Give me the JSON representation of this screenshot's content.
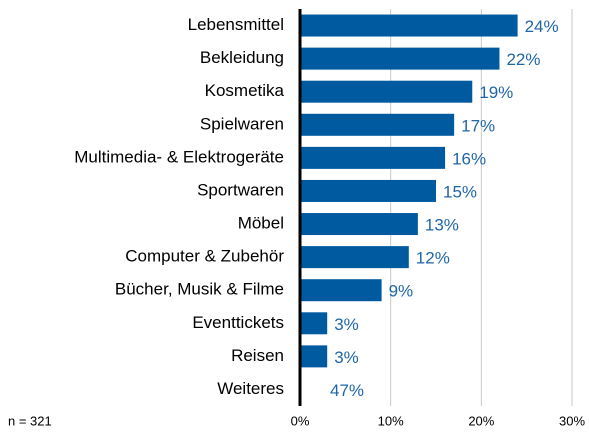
{
  "chart_data": {
    "type": "barh",
    "categories": [
      "Lebensmittel",
      "Bekleidung",
      "Kosmetika",
      "Spielwaren",
      "Multimedia- & Elektrogeräte",
      "Sportwaren",
      "Möbel",
      "Computer & Zubehör",
      "Bücher, Musik & Filme",
      "Eventtickets",
      "Reisen",
      "Weiteres"
    ],
    "values": [
      24,
      22,
      19,
      17,
      16,
      15,
      13,
      12,
      9,
      3,
      3,
      47
    ],
    "value_labels": [
      "24%",
      "22%",
      "19%",
      "17%",
      "16%",
      "15%",
      "13%",
      "12%",
      "9%",
      "3%",
      "3%",
      "47%"
    ],
    "colors": [
      "#005aa0",
      "#005aa0",
      "#005aa0",
      "#005aa0",
      "#005aa0",
      "#005aa0",
      "#005aa0",
      "#005aa0",
      "#005aa0",
      "#005aa0",
      "#005aa0",
      "none"
    ],
    "xlim": [
      0,
      30
    ],
    "xticks": [
      {
        "value": 0,
        "label": "0%"
      },
      {
        "value": 10,
        "label": "10%"
      },
      {
        "value": 20,
        "label": "20%"
      },
      {
        "value": 30,
        "label": "30%"
      }
    ],
    "grid": true,
    "note": "n = 321"
  }
}
